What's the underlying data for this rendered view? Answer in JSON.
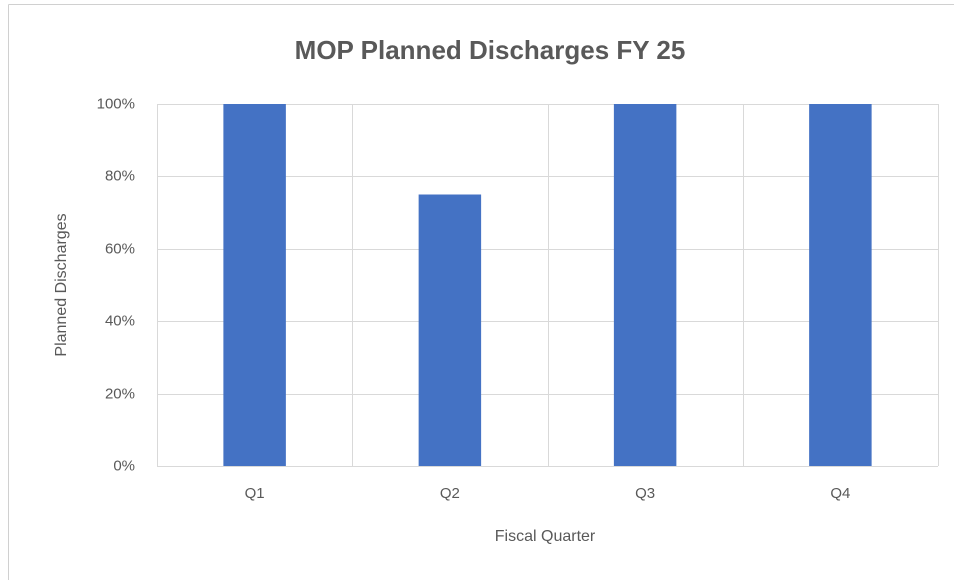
{
  "chart_data": {
    "type": "bar",
    "title": "MOP Planned Discharges FY 25",
    "x_label": "Fiscal Quarter",
    "y_label": "Planned Discharges",
    "categories": [
      "Q1",
      "Q2",
      "Q3",
      "Q4"
    ],
    "values": [
      100,
      75,
      100,
      100
    ],
    "color": "#4472c4",
    "ylim": [
      0,
      100
    ],
    "yticks": [
      {
        "value": 0,
        "label": "0%"
      },
      {
        "value": 20,
        "label": "20%"
      },
      {
        "value": 40,
        "label": "40%"
      },
      {
        "value": 60,
        "label": "60%"
      },
      {
        "value": 80,
        "label": "80%"
      },
      {
        "value": 100,
        "label": "100%"
      }
    ],
    "grid": true
  }
}
